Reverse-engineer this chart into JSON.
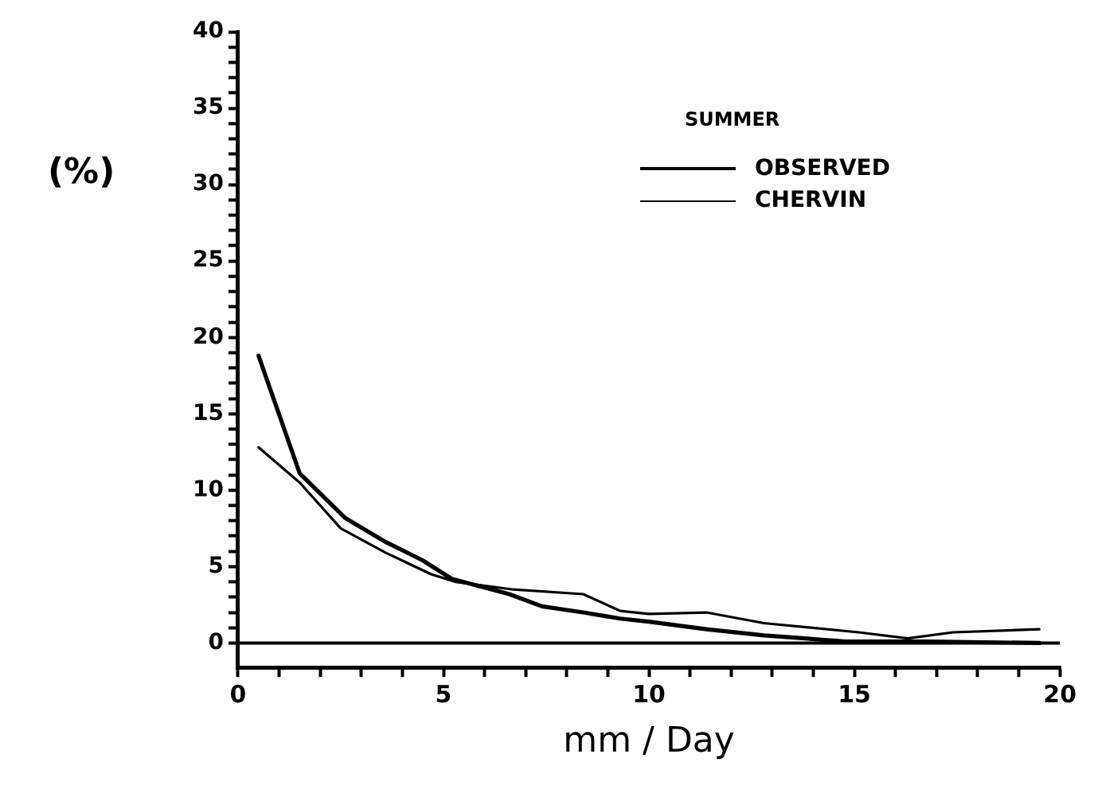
{
  "chart_data": {
    "type": "line",
    "xlabel": "mm / Day",
    "ylabel": "(%)",
    "legend_title": "SUMMER",
    "legend": "top right",
    "marker": "none",
    "line_style": "solid",
    "grid": false,
    "xlim": [
      0,
      20
    ],
    "xticks": [
      0,
      {
        "value": 1,
        "label": null
      },
      {
        "value": 2,
        "label": null
      },
      {
        "value": 3,
        "label": null
      },
      {
        "value": 4,
        "label": null
      },
      5,
      {
        "value": 6,
        "label": null
      },
      {
        "value": 7,
        "label": null
      },
      {
        "value": 8,
        "label": null
      },
      {
        "value": 9,
        "label": null
      },
      10,
      {
        "value": 11,
        "label": null
      },
      {
        "value": 12,
        "label": null
      },
      {
        "value": 13,
        "label": null
      },
      {
        "value": 14,
        "label": null
      },
      15,
      {
        "value": 16,
        "label": null
      },
      {
        "value": 17,
        "label": null
      },
      {
        "value": 18,
        "label": null
      },
      {
        "value": 19,
        "label": null
      },
      20
    ],
    "ylim": [
      -1.6,
      40
    ],
    "yticks": [
      0,
      {
        "value": 1,
        "label": null
      },
      {
        "value": 2,
        "label": null
      },
      {
        "value": 3,
        "label": null
      },
      {
        "value": 4,
        "label": null
      },
      5,
      {
        "value": 6,
        "label": null
      },
      {
        "value": 7,
        "label": null
      },
      {
        "value": 8,
        "label": null
      },
      {
        "value": 9,
        "label": null
      },
      10,
      {
        "value": 11,
        "label": null
      },
      {
        "value": 12,
        "label": null
      },
      {
        "value": 13,
        "label": null
      },
      {
        "value": 14,
        "label": null
      },
      15,
      {
        "value": 16,
        "label": null
      },
      {
        "value": 17,
        "label": null
      },
      {
        "value": 18,
        "label": null
      },
      {
        "value": 19,
        "label": null
      },
      20,
      {
        "value": 21,
        "label": null
      },
      {
        "value": 22,
        "label": null
      },
      {
        "value": 23,
        "label": null
      },
      {
        "value": 24,
        "label": null
      },
      25,
      {
        "value": 26,
        "label": null
      },
      {
        "value": 27,
        "label": null
      },
      {
        "value": 28,
        "label": null
      },
      {
        "value": 29,
        "label": null
      },
      30,
      {
        "value": 31,
        "label": null
      },
      {
        "value": 32,
        "label": null
      },
      {
        "value": 33,
        "label": null
      },
      {
        "value": 34,
        "label": null
      },
      35,
      {
        "value": 36,
        "label": null
      },
      {
        "value": 37,
        "label": null
      },
      {
        "value": 38,
        "label": null
      },
      {
        "value": 39,
        "label": null
      },
      40
    ],
    "ref_lines": [
      {
        "axis": "y",
        "value": 0,
        "color": "#000000"
      }
    ],
    "series": [
      {
        "name": "OBSERVED",
        "color": "#000000",
        "x": [
          0.5,
          1.5,
          2.6,
          3.6,
          4.5,
          5.2,
          6.6,
          7.4,
          8.4,
          9.3,
          10.0,
          11.4,
          12.8,
          14.8,
          16.8,
          19.5
        ],
        "values": [
          18.8,
          11.1,
          8.2,
          6.6,
          5.4,
          4.2,
          3.2,
          2.4,
          2.0,
          1.6,
          1.4,
          0.9,
          0.5,
          0.1,
          0.1,
          0
        ]
      },
      {
        "name": "CHERVIN",
        "color": "#000000",
        "x": [
          0.5,
          1.5,
          2.5,
          3.6,
          4.7,
          5.3,
          6.7,
          8.4,
          9.3,
          10.0,
          11.4,
          12.8,
          15.1,
          16.3,
          17.4,
          19.5
        ],
        "values": [
          12.8,
          10.5,
          7.5,
          5.9,
          4.5,
          4.0,
          3.5,
          3.2,
          2.1,
          1.9,
          2.0,
          1.3,
          0.7,
          0.3,
          0.7,
          0.9
        ]
      }
    ]
  }
}
